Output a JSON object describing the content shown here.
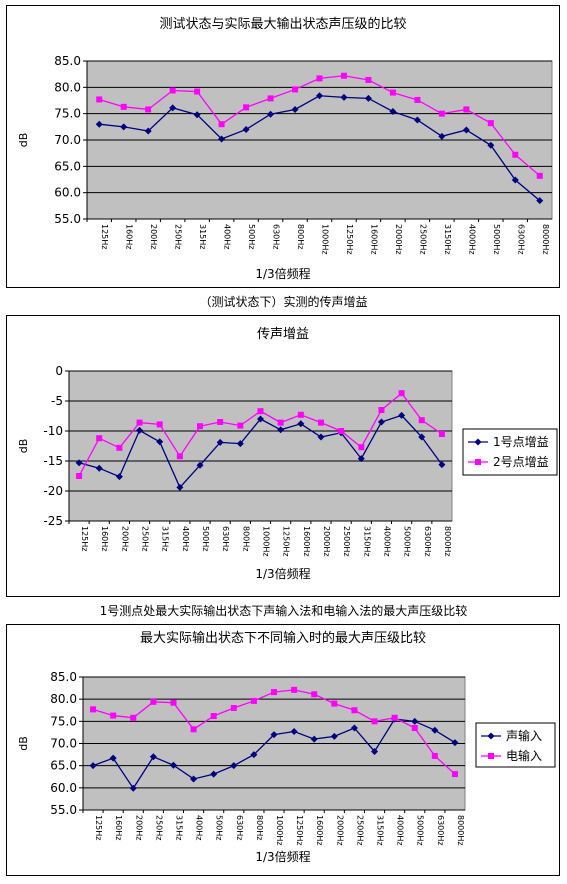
{
  "captions": {
    "caption1": "（测试状态下）实测的传声增益",
    "caption2": "1号测点处最大实际输出状态下声输入法和电输入法的最大声压级比较"
  },
  "colors": {
    "plot_bg": "#c0c0c0",
    "series_blue": "#000080",
    "series_magenta": "#ff00ff"
  },
  "chart_data": [
    {
      "type": "line",
      "title": "测试状态与实际最大输出状态声压级的比较",
      "xlabel": "1/3倍频程",
      "ylabel": "dB",
      "ylim": [
        55,
        85
      ],
      "yticks": [
        "55.0",
        "60.0",
        "65.0",
        "70.0",
        "75.0",
        "80.0",
        "85.0"
      ],
      "legend": "none",
      "grid": true,
      "categories": [
        "125Hz",
        "160Hz",
        "200Hz",
        "250Hz",
        "315Hz",
        "400Hz",
        "500Hz",
        "630Hz",
        "800Hz",
        "1000Hz",
        "1250Hz",
        "1600Hz",
        "2000Hz",
        "2500Hz",
        "3150Hz",
        "4000Hz",
        "5000Hz",
        "6300Hz",
        "8000Hz"
      ],
      "series": [
        {
          "color": "#000080",
          "marker": "diamond",
          "values": [
            73.0,
            72.5,
            71.7,
            76.1,
            74.8,
            70.2,
            72.0,
            74.9,
            75.8,
            78.4,
            78.1,
            77.9,
            75.4,
            73.8,
            70.7,
            71.9,
            69.0,
            62.4,
            58.5
          ]
        },
        {
          "color": "#ff00ff",
          "marker": "square",
          "values": [
            77.7,
            76.3,
            75.8,
            79.4,
            79.2,
            73.0,
            76.2,
            77.9,
            79.6,
            81.7,
            82.2,
            81.4,
            79.0,
            77.6,
            75.0,
            75.8,
            73.2,
            67.2,
            63.2
          ]
        }
      ]
    },
    {
      "type": "line",
      "title": "传声增益",
      "xlabel": "1/3倍频程",
      "ylabel": "dB",
      "ylim": [
        -25,
        0
      ],
      "yticks": [
        "-25",
        "-20",
        "-15",
        "-10",
        "-5",
        "0"
      ],
      "legend": "right",
      "grid": true,
      "categories": [
        "125Hz",
        "160Hz",
        "200Hz",
        "250Hz",
        "315Hz",
        "400Hz",
        "500Hz",
        "630Hz",
        "800Hz",
        "1000Hz",
        "1250Hz",
        "1600Hz",
        "2000Hz",
        "2500Hz",
        "3150Hz",
        "4000Hz",
        "5000Hz",
        "6300Hz",
        "8000Hz"
      ],
      "series": [
        {
          "name": "1号点增益",
          "color": "#000080",
          "marker": "diamond",
          "values": [
            -15.3,
            -16.2,
            -17.6,
            -9.9,
            -11.8,
            -19.4,
            -15.7,
            -11.9,
            -12.1,
            -8.0,
            -9.8,
            -8.8,
            -11.0,
            -10.3,
            -14.6,
            -8.5,
            -7.4,
            -11.0,
            -15.6
          ]
        },
        {
          "name": "2号点增益",
          "color": "#ff00ff",
          "marker": "square",
          "values": [
            -17.5,
            -11.2,
            -12.8,
            -8.6,
            -8.9,
            -14.2,
            -9.2,
            -8.5,
            -9.1,
            -6.7,
            -8.6,
            -7.3,
            -8.6,
            -10.0,
            -12.7,
            -6.5,
            -3.7,
            -8.2,
            -10.5
          ]
        }
      ]
    },
    {
      "type": "line",
      "title": "最大实际输出状态下不同输入时的最大声压级比较",
      "xlabel": "1/3倍频程",
      "ylabel": "dB",
      "ylim": [
        55,
        85
      ],
      "yticks": [
        "55.0",
        "60.0",
        "65.0",
        "70.0",
        "75.0",
        "80.0",
        "85.0"
      ],
      "legend": "right",
      "grid": true,
      "categories": [
        "125Hz",
        "160Hz",
        "200Hz",
        "250Hz",
        "315Hz",
        "400Hz",
        "500Hz",
        "630Hz",
        "800Hz",
        "1000Hz",
        "1250Hz",
        "1600Hz",
        "2000Hz",
        "2500Hz",
        "3150Hz",
        "4000Hz",
        "5000Hz",
        "6300Hz",
        "8000Hz"
      ],
      "series": [
        {
          "name": "声输入",
          "color": "#000080",
          "marker": "diamond",
          "values": [
            65.0,
            66.7,
            59.9,
            67.0,
            65.1,
            62.0,
            63.1,
            65.0,
            67.5,
            72.0,
            72.7,
            71.0,
            71.6,
            73.5,
            68.2,
            75.5,
            75.0,
            73.0,
            70.2
          ]
        },
        {
          "name": "电输入",
          "color": "#ff00ff",
          "marker": "square",
          "values": [
            77.7,
            76.3,
            75.8,
            79.4,
            79.2,
            73.2,
            76.2,
            78.0,
            79.6,
            81.6,
            82.1,
            81.1,
            79.0,
            77.5,
            75.0,
            75.8,
            73.5,
            67.2,
            63.1
          ]
        }
      ]
    }
  ]
}
